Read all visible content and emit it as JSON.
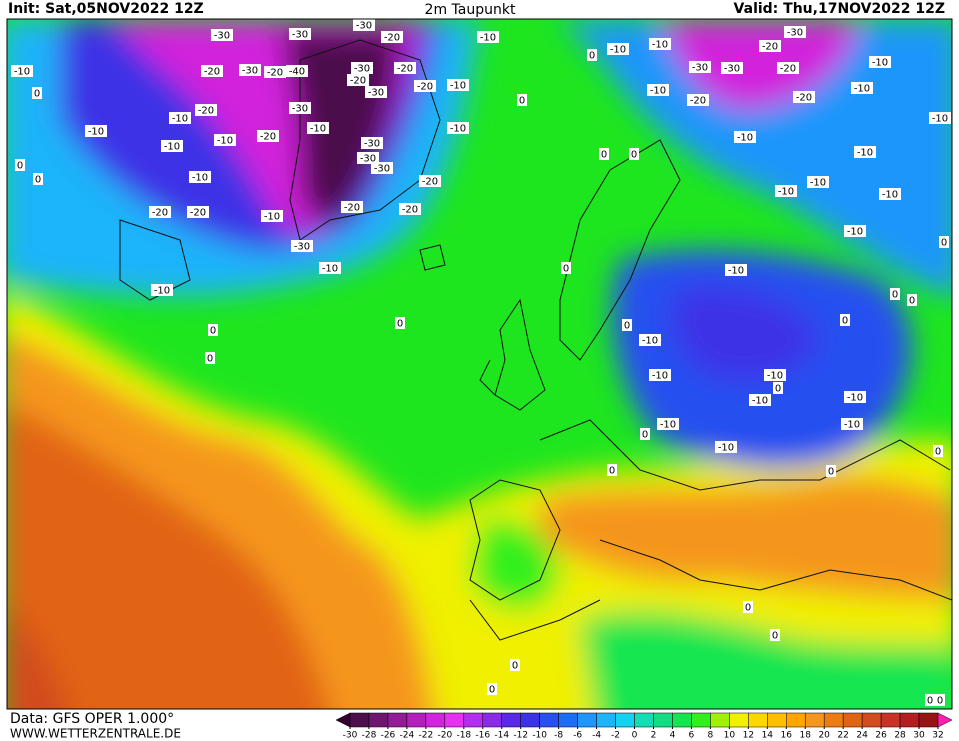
{
  "header": {
    "init": "Init: Sat,05NOV2022 12Z",
    "title": "2m Taupunkt",
    "valid": "Valid: Thu,17NOV2022 12Z"
  },
  "footer": {
    "source": "Data: GFS OPER 1.000°",
    "website": "WWW.WETTERZENTRALE.DE"
  },
  "colorbar": {
    "ticks": [
      -30,
      -28,
      -26,
      -24,
      -22,
      -20,
      -18,
      -16,
      -14,
      -12,
      -10,
      -8,
      -6,
      -4,
      -2,
      0,
      2,
      4,
      6,
      8,
      10,
      12,
      14,
      16,
      18,
      20,
      22,
      24,
      26,
      28,
      30,
      32
    ],
    "colors": [
      "#300030",
      "#4b0f4b",
      "#6e1570",
      "#921b96",
      "#b41fbc",
      "#d224dc",
      "#e632f0",
      "#b42ef0",
      "#8a2be8",
      "#5a28e6",
      "#3c32e6",
      "#2850f0",
      "#1e6ef5",
      "#1e96fa",
      "#1eb4fa",
      "#14d2f0",
      "#14dcb4",
      "#14dc82",
      "#14e650",
      "#32f01e",
      "#a0f00a",
      "#f0f000",
      "#ffd700",
      "#ffbe00",
      "#ffa500",
      "#f5961e",
      "#eb7d14",
      "#e16414",
      "#d24b1e",
      "#c83228",
      "#b41e1e",
      "#961414",
      "#ff1eb4"
    ]
  },
  "contour_labels": [
    -30,
    -30,
    -30,
    -20,
    -20,
    -30,
    -20,
    -40,
    -30,
    -20,
    -30,
    -20,
    -10,
    -10,
    -20,
    -20,
    -10,
    -10,
    -10,
    -20,
    -30,
    -10,
    -30,
    -30,
    -30,
    -20,
    -20,
    -20,
    -10,
    -20,
    -20,
    -10,
    -30,
    -10,
    -10,
    -10,
    -10,
    -10,
    -10,
    -30,
    -30,
    -30,
    -20,
    -20,
    -20,
    -10,
    -20,
    -10,
    -10,
    -10,
    -10,
    -10,
    -10,
    -10,
    -10,
    -10,
    -10,
    -10,
    -10,
    -10,
    -10,
    -10,
    -10,
    -10,
    -10,
    -10,
    0,
    0,
    0,
    0,
    0,
    0,
    0,
    0,
    0,
    0,
    0,
    0,
    0,
    0,
    0,
    0,
    0,
    0,
    0,
    0,
    0,
    0,
    0,
    0,
    0,
    0,
    0
  ]
}
